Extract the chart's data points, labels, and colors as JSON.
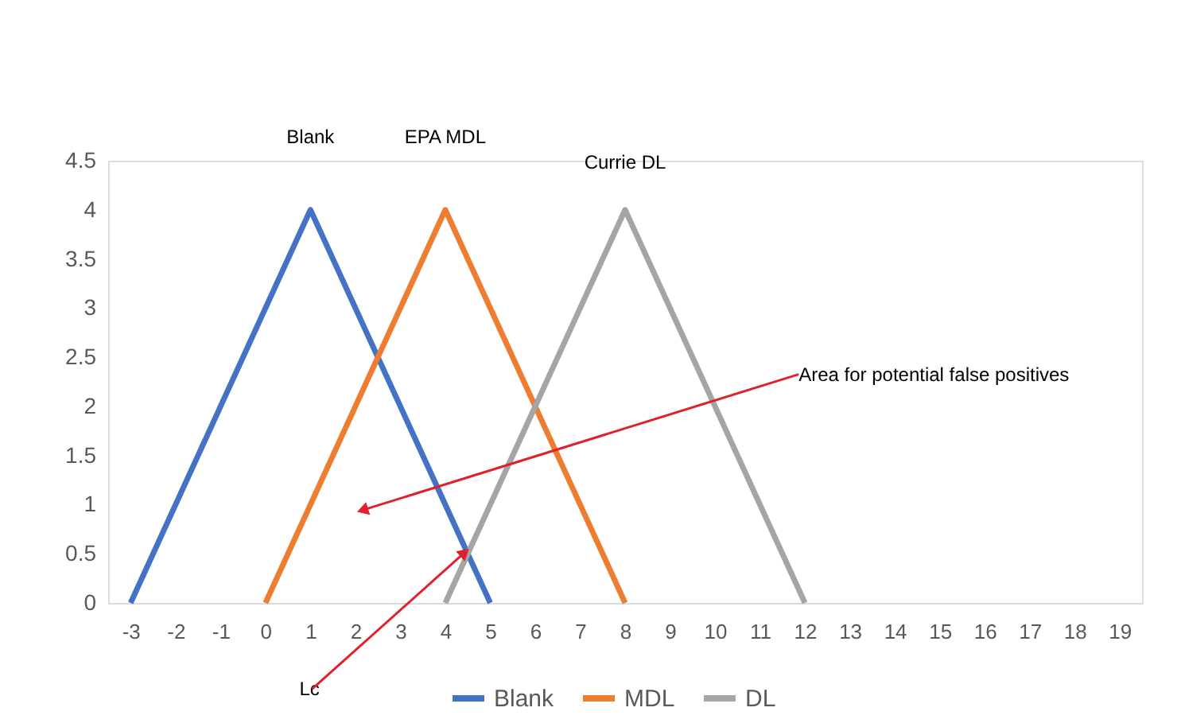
{
  "chart_data": {
    "type": "line",
    "series": [
      {
        "name": "Blank",
        "color": "#4472c4",
        "x": [
          -3,
          1,
          5
        ],
        "values": [
          0,
          4,
          0
        ]
      },
      {
        "name": "MDL",
        "color": "#ed7d31",
        "x": [
          0,
          4,
          8
        ],
        "values": [
          0,
          4,
          0
        ]
      },
      {
        "name": "DL",
        "color": "#a5a5a5",
        "x": [
          4,
          8,
          12
        ],
        "values": [
          0,
          4,
          0
        ]
      }
    ],
    "xlim": [
      -3.5,
      19.5
    ],
    "xticks": [
      -3,
      -2,
      -1,
      0,
      1,
      2,
      3,
      4,
      5,
      6,
      7,
      8,
      9,
      10,
      11,
      12,
      13,
      14,
      15,
      16,
      17,
      18,
      19
    ],
    "ylim": [
      0,
      4.5
    ],
    "yticks": [
      0,
      0.5,
      1,
      1.5,
      2,
      2.5,
      3,
      3.5,
      4,
      4.5
    ],
    "annotations": [
      "Blank",
      "EPA MDL",
      "Currie DL",
      {
        "text": "Area for potential false positives",
        "x": 2.2,
        "y": 0.95
      },
      {
        "text": "Lc",
        "x": 4.4,
        "y": 0.5
      }
    ],
    "legend": "bottom",
    "grid": false,
    "marker": "none",
    "line_style": "solid"
  }
}
